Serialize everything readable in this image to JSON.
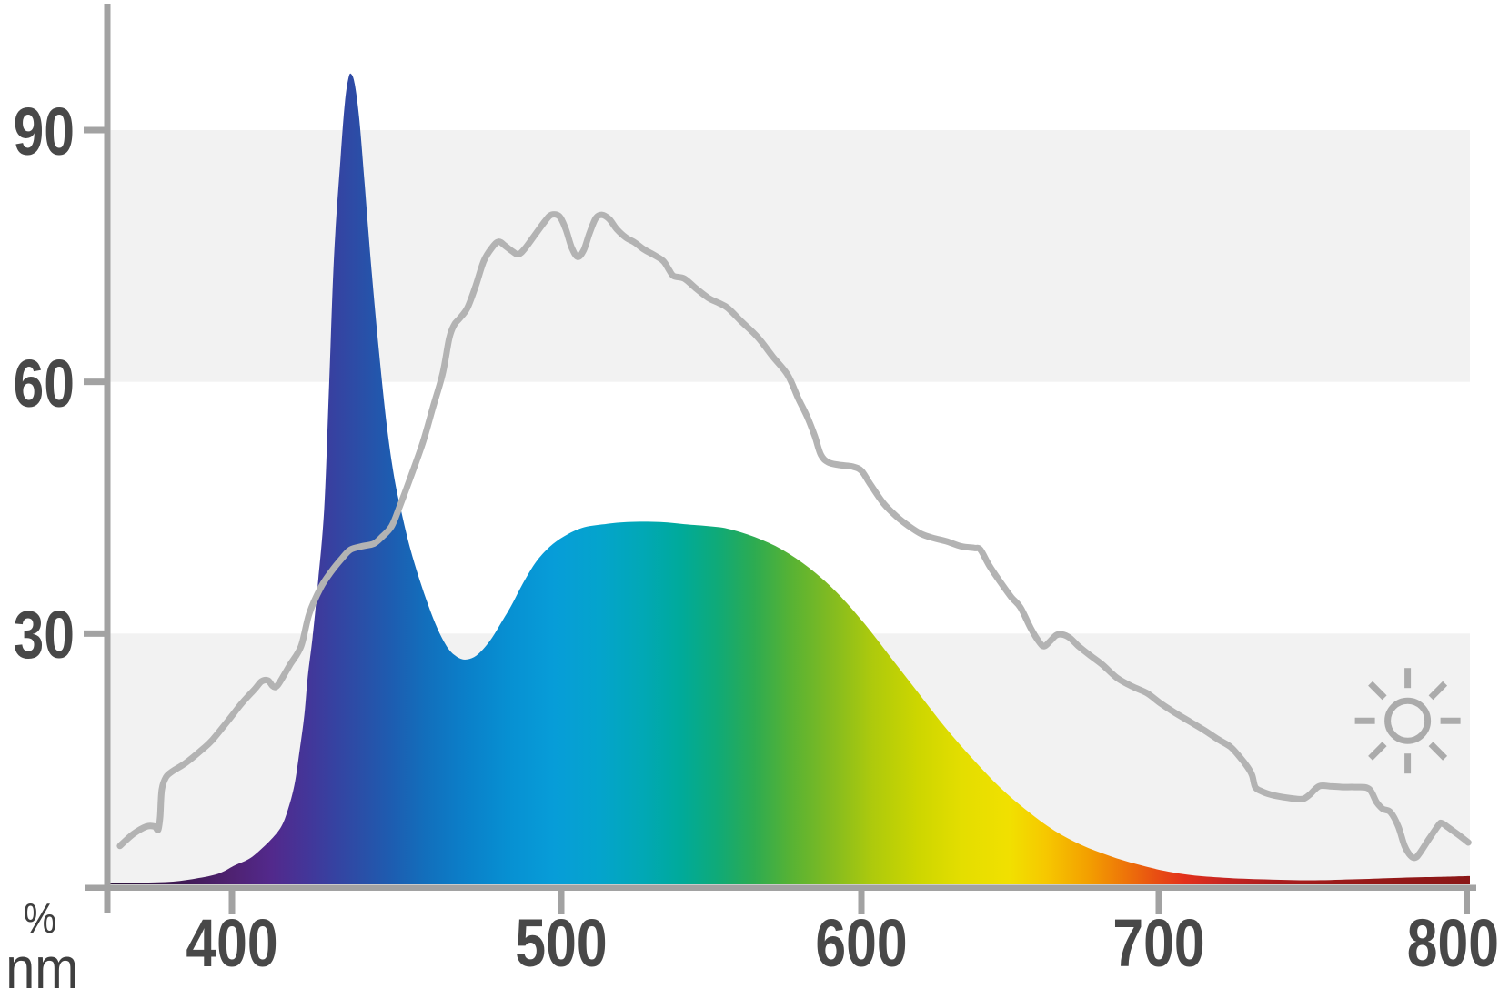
{
  "chart_data": {
    "type": "area",
    "title": "",
    "x_axis": {
      "unit": "nm",
      "tick_labels": [
        "400",
        "500",
        "600",
        "700",
        "800"
      ],
      "tick_values": [
        400,
        500,
        600,
        700,
        800
      ],
      "range_nm": [
        362,
        800
      ]
    },
    "y_axis": {
      "unit": "%",
      "tick_labels": [
        "90",
        "60",
        "30"
      ],
      "tick_values": [
        90,
        60,
        30
      ],
      "range": [
        0,
        100
      ]
    },
    "grid": "off",
    "legend": "none",
    "grid_bands_percent": [
      [
        0,
        30
      ],
      [
        60,
        90
      ]
    ],
    "series": [
      {
        "name": "led-spectrum",
        "style": "area-spectral-gradient",
        "points": [
          [
            362,
            0.2
          ],
          [
            371,
            0.3
          ],
          [
            381,
            0.4
          ],
          [
            389,
            0.8
          ],
          [
            396,
            1.4
          ],
          [
            401,
            2.4
          ],
          [
            405,
            3.1
          ],
          [
            408,
            4.0
          ],
          [
            412,
            5.5
          ],
          [
            415,
            7.0
          ],
          [
            417,
            9.0
          ],
          [
            419,
            12.0
          ],
          [
            420.5,
            15.9
          ],
          [
            422,
            20.3
          ],
          [
            423,
            24.8
          ],
          [
            424.5,
            29.6
          ],
          [
            426,
            35.5
          ],
          [
            428,
            44.8
          ],
          [
            429.5,
            59.5
          ],
          [
            431,
            74.9
          ],
          [
            433,
            86.8
          ],
          [
            434.3,
            93.3
          ],
          [
            435.4,
            96.2
          ],
          [
            436.2,
            96.7
          ],
          [
            437.3,
            95.5
          ],
          [
            438.7,
            91.2
          ],
          [
            440.3,
            83.6
          ],
          [
            442.5,
            72.8
          ],
          [
            444.8,
            63.0
          ],
          [
            447,
            54.9
          ],
          [
            449.2,
            48.8
          ],
          [
            451.4,
            44.6
          ],
          [
            454.1,
            40.2
          ],
          [
            456.9,
            36.5
          ],
          [
            459.7,
            33.3
          ],
          [
            462.4,
            30.6
          ],
          [
            465.2,
            28.5
          ],
          [
            467.7,
            27.4
          ],
          [
            470.4,
            26.9
          ],
          [
            473.5,
            27.2
          ],
          [
            476.2,
            28.1
          ],
          [
            479,
            29.5
          ],
          [
            481.8,
            31.3
          ],
          [
            484.8,
            33.3
          ],
          [
            488.4,
            36.0
          ],
          [
            492.3,
            38.5
          ],
          [
            496.4,
            40.3
          ],
          [
            501,
            41.6
          ],
          [
            507,
            42.6
          ],
          [
            513.6,
            43.0
          ],
          [
            522,
            43.3
          ],
          [
            533,
            43.3
          ],
          [
            542,
            43.0
          ],
          [
            549,
            42.8
          ],
          [
            555.5,
            42.5
          ],
          [
            564.5,
            41.5
          ],
          [
            573.6,
            40.0
          ],
          [
            582.7,
            37.8
          ],
          [
            591.8,
            34.9
          ],
          [
            601,
            31.2
          ],
          [
            610,
            27.1
          ],
          [
            619,
            23.0
          ],
          [
            628,
            18.9
          ],
          [
            637.6,
            15.0
          ],
          [
            646.8,
            11.6
          ],
          [
            656,
            8.8
          ],
          [
            665,
            6.5
          ],
          [
            674,
            4.8
          ],
          [
            683.5,
            3.5
          ],
          [
            692.7,
            2.5
          ],
          [
            702,
            1.7
          ],
          [
            710.5,
            1.2
          ],
          [
            721,
            0.9
          ],
          [
            734,
            0.7
          ],
          [
            748.5,
            0.6
          ],
          [
            762,
            0.7
          ],
          [
            778,
            0.9
          ],
          [
            790,
            1.0
          ],
          [
            800,
            1.1
          ]
        ]
      },
      {
        "name": "reference-gray",
        "style": "line",
        "points": [
          [
            366,
            4.7
          ],
          [
            370,
            6.1
          ],
          [
            374,
            7.0
          ],
          [
            376.5,
            7.0
          ],
          [
            377.6,
            6.6
          ],
          [
            378.2,
            8.2
          ],
          [
            378.7,
            11.4
          ],
          [
            380,
            12.9
          ],
          [
            382,
            13.6
          ],
          [
            386,
            14.6
          ],
          [
            391,
            16.2
          ],
          [
            394,
            17.3
          ],
          [
            399,
            19.7
          ],
          [
            403,
            21.7
          ],
          [
            407,
            23.4
          ],
          [
            409,
            24.3
          ],
          [
            411,
            24.4
          ],
          [
            412.5,
            23.7
          ],
          [
            414,
            23.9
          ],
          [
            417.5,
            26.2
          ],
          [
            421,
            28.5
          ],
          [
            423.5,
            32.4
          ],
          [
            427,
            35.5
          ],
          [
            430,
            37.3
          ],
          [
            433.5,
            39.0
          ],
          [
            436,
            40.0
          ],
          [
            439.5,
            40.4
          ],
          [
            443,
            40.7
          ],
          [
            445.5,
            41.5
          ],
          [
            448.5,
            42.8
          ],
          [
            451,
            45.2
          ],
          [
            454.5,
            48.9
          ],
          [
            458,
            52.8
          ],
          [
            461,
            56.9
          ],
          [
            464,
            61.0
          ],
          [
            466,
            65.2
          ],
          [
            467.5,
            66.8
          ],
          [
            469,
            67.5
          ],
          [
            471.5,
            68.8
          ],
          [
            474,
            71.4
          ],
          [
            476.5,
            74.4
          ],
          [
            479,
            76.0
          ],
          [
            481,
            76.7
          ],
          [
            483,
            76.2
          ],
          [
            485,
            75.6
          ],
          [
            487,
            75.2
          ],
          [
            489,
            75.9
          ],
          [
            492,
            77.5
          ],
          [
            495,
            79.1
          ],
          [
            497,
            79.9
          ],
          [
            499.5,
            79.7
          ],
          [
            501.5,
            78.2
          ],
          [
            503.5,
            76.0
          ],
          [
            505.5,
            74.9
          ],
          [
            507.5,
            75.7
          ],
          [
            509.5,
            77.8
          ],
          [
            511.5,
            79.5
          ],
          [
            513.5,
            79.9
          ],
          [
            516,
            79.4
          ],
          [
            518.5,
            78.2
          ],
          [
            521.5,
            77.2
          ],
          [
            524.5,
            76.6
          ],
          [
            527.5,
            75.8
          ],
          [
            531,
            75.1
          ],
          [
            534,
            74.4
          ],
          [
            536,
            73.3
          ],
          [
            537.5,
            72.6
          ],
          [
            541,
            72.3
          ],
          [
            545,
            71.1
          ],
          [
            549,
            70.0
          ],
          [
            552.5,
            69.4
          ],
          [
            555.5,
            68.8
          ],
          [
            560,
            67.2
          ],
          [
            565.5,
            65.3
          ],
          [
            570.5,
            63.0
          ],
          [
            575.5,
            60.8
          ],
          [
            579,
            58.0
          ],
          [
            582,
            55.8
          ],
          [
            584.5,
            53.5
          ],
          [
            586.5,
            51.3
          ],
          [
            589,
            50.4
          ],
          [
            592.5,
            50.1
          ],
          [
            597,
            49.9
          ],
          [
            600,
            49.4
          ],
          [
            603,
            47.8
          ],
          [
            607.5,
            45.5
          ],
          [
            612,
            43.9
          ],
          [
            616,
            42.8
          ],
          [
            620,
            41.9
          ],
          [
            624,
            41.4
          ],
          [
            628.5,
            41.0
          ],
          [
            633.5,
            40.4
          ],
          [
            638,
            40.2
          ],
          [
            640,
            40.0
          ],
          [
            643,
            38.1
          ],
          [
            647,
            36.0
          ],
          [
            650.5,
            34.3
          ],
          [
            653.5,
            33.1
          ],
          [
            657,
            30.6
          ],
          [
            660,
            28.9
          ],
          [
            661.5,
            28.5
          ],
          [
            663.5,
            29.1
          ],
          [
            665.5,
            29.8
          ],
          [
            667.5,
            29.9
          ],
          [
            670,
            29.5
          ],
          [
            673,
            28.5
          ],
          [
            676.5,
            27.5
          ],
          [
            681,
            26.3
          ],
          [
            686,
            24.7
          ],
          [
            691,
            23.7
          ],
          [
            696,
            22.9
          ],
          [
            700.5,
            21.7
          ],
          [
            705,
            20.6
          ],
          [
            710,
            19.5
          ],
          [
            714.5,
            18.5
          ],
          [
            719,
            17.4
          ],
          [
            723,
            16.5
          ],
          [
            726,
            15.3
          ],
          [
            728.5,
            14.1
          ],
          [
            730,
            13.1
          ],
          [
            731,
            11.7
          ],
          [
            733,
            11.2
          ],
          [
            736,
            10.8
          ],
          [
            740,
            10.5
          ],
          [
            744,
            10.3
          ],
          [
            746.5,
            10.3
          ],
          [
            748.5,
            10.8
          ],
          [
            751.5,
            11.8
          ],
          [
            755,
            11.8
          ],
          [
            759,
            11.7
          ],
          [
            763,
            11.7
          ],
          [
            767.5,
            11.5
          ],
          [
            770,
            9.9
          ],
          [
            772,
            9.1
          ],
          [
            774.5,
            8.7
          ],
          [
            777,
            7.0
          ],
          [
            779,
            4.7
          ],
          [
            781,
            3.5
          ],
          [
            782.5,
            3.3
          ],
          [
            784,
            3.9
          ],
          [
            787,
            5.6
          ],
          [
            790,
            7.2
          ],
          [
            791,
            7.4
          ],
          [
            793,
            6.9
          ],
          [
            796,
            6.1
          ],
          [
            799.5,
            5.1
          ]
        ]
      }
    ],
    "gradient_stops": [
      [
        362,
        "#2a1138"
      ],
      [
        385,
        "#3f1a54"
      ],
      [
        400,
        "#4f2272"
      ],
      [
        412,
        "#52298c"
      ],
      [
        423,
        "#433699"
      ],
      [
        431,
        "#3642a1"
      ],
      [
        440,
        "#2950a8"
      ],
      [
        448,
        "#1e5cb0"
      ],
      [
        459,
        "#126fbc"
      ],
      [
        470,
        "#0b7ec8"
      ],
      [
        484,
        "#0790d2"
      ],
      [
        498,
        "#079dd8"
      ],
      [
        513,
        "#04a4cc"
      ],
      [
        528,
        "#01a8b4"
      ],
      [
        540,
        "#00aa9a"
      ],
      [
        552,
        "#0faa78"
      ],
      [
        564,
        "#2cab52"
      ],
      [
        576,
        "#55b235"
      ],
      [
        589,
        "#7fba22"
      ],
      [
        604,
        "#aeca0c"
      ],
      [
        619,
        "#cdd600"
      ],
      [
        634,
        "#e4de00"
      ],
      [
        650,
        "#f1e000"
      ],
      [
        662,
        "#f6c800"
      ],
      [
        676,
        "#f3a000"
      ],
      [
        688,
        "#ee7708"
      ],
      [
        699,
        "#e84f12"
      ],
      [
        708,
        "#e3311b"
      ],
      [
        721,
        "#c62521"
      ],
      [
        737,
        "#aa1d1d"
      ],
      [
        757,
        "#9a1a19"
      ],
      [
        800,
        "#8a1717"
      ]
    ],
    "annotations": [
      {
        "icon": "sun",
        "position_wl": 780,
        "position_pct": 19.6
      }
    ]
  },
  "labels": {
    "y90": "90",
    "y60": "60",
    "y30": "30",
    "x400": "400",
    "x500": "500",
    "x600": "600",
    "x700": "700",
    "x800": "800",
    "unit_percent": "%",
    "unit_nm": "nm"
  },
  "colors": {
    "background": "#ffffff",
    "band": "#f2f2f2",
    "axis": "#a2a2a2",
    "tick_label": "#484848",
    "reference_line": "#b3b3b3",
    "sun_icon": "#ababab"
  }
}
